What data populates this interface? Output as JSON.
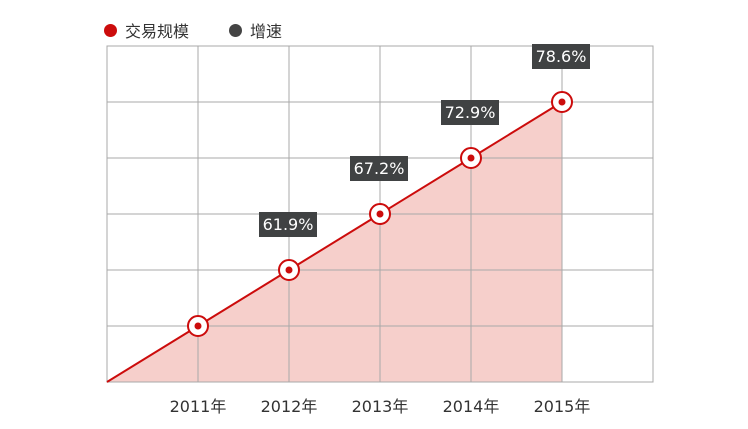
{
  "legend": [
    {
      "name": "交易规模",
      "color": "#cc0c0c"
    },
    {
      "name": "增速",
      "color": "#444444"
    }
  ],
  "colors": {
    "line": "#cc0c0c",
    "area": "#f6cfcb",
    "grid": "#a8a8a8",
    "label_bg": "#404243",
    "label_text": "#ffffff",
    "marker_fill": "#ffffff"
  },
  "chart_data": {
    "type": "area",
    "x": [
      "2011年",
      "2012年",
      "2013年",
      "2014年",
      "2015年"
    ],
    "series": [
      {
        "name": "增速",
        "values": [
          null,
          61.9,
          67.2,
          72.9,
          78.6
        ],
        "labels": [
          "",
          "61.9%",
          "67.2%",
          "72.9%",
          "78.6%"
        ]
      }
    ],
    "grid": true,
    "legend_position": "top-left"
  }
}
